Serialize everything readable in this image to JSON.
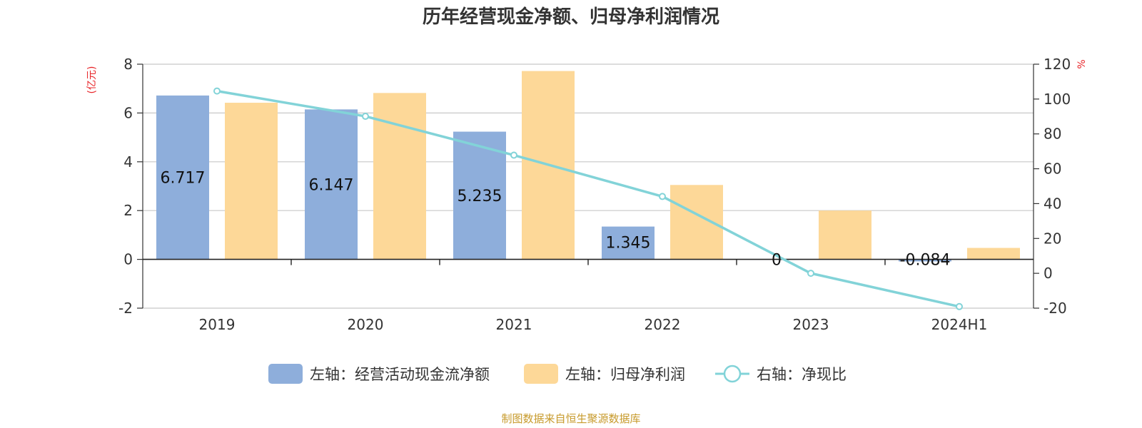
{
  "title": "历年经营现金净额、归母净利润情况",
  "source": "制图数据来自恒生聚源数据库",
  "chart_data": {
    "type": "bar",
    "categories": [
      "2019",
      "2020",
      "2021",
      "2022",
      "2023",
      "2024H1"
    ],
    "left_axis": {
      "unit": "(亿元)",
      "ylim": [
        -2,
        8
      ],
      "ticks": [
        "8",
        "6",
        "4",
        "2",
        "0",
        "-2"
      ]
    },
    "right_axis": {
      "unit": "%",
      "ylim": [
        -20,
        120
      ],
      "ticks": [
        "120",
        "100",
        "80",
        "60",
        "40",
        "20",
        "0",
        "-20"
      ]
    },
    "series": [
      {
        "name": "左轴：经营活动现金流净额",
        "type": "bar",
        "axis": "left",
        "color": "#8eaedb",
        "values": [
          6.717,
          6.147,
          5.235,
          1.345,
          0,
          -0.084
        ],
        "labels": [
          "6.717",
          "6.147",
          "5.235",
          "1.345",
          "0",
          "-0.084"
        ]
      },
      {
        "name": "左轴：归母净利润",
        "type": "bar",
        "axis": "left",
        "color": "#fdd898",
        "values": [
          6.42,
          6.82,
          7.72,
          3.05,
          2.0,
          0.47
        ]
      },
      {
        "name": "右轴：净现比",
        "type": "line",
        "axis": "right",
        "color": "#82d3d8",
        "values": [
          104.6,
          90.1,
          67.8,
          44.1,
          0,
          -19.1
        ]
      }
    ],
    "grid": true,
    "legend_position": "bottom"
  }
}
